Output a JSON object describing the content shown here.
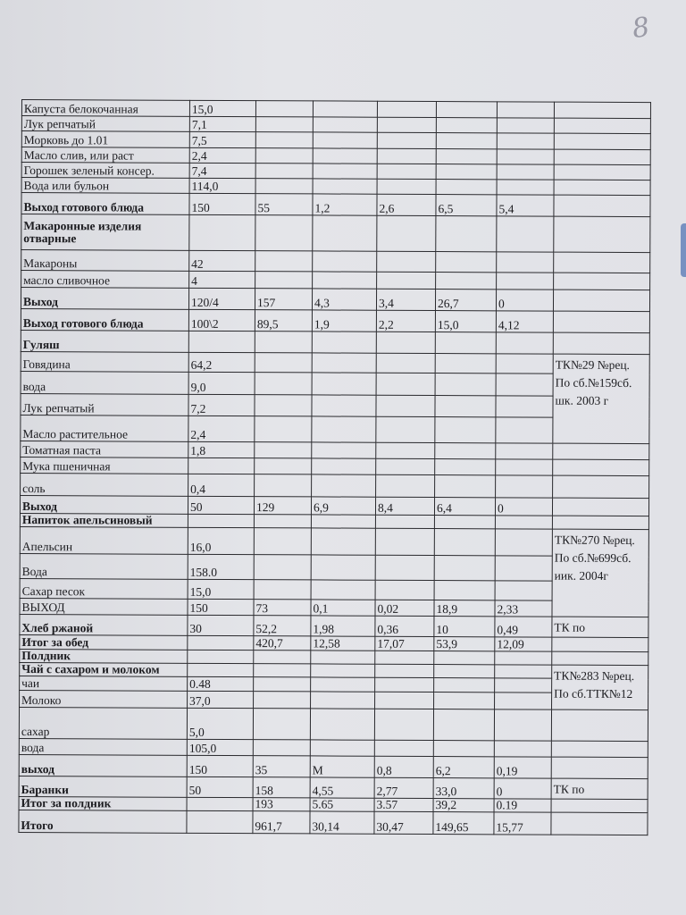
{
  "page_number": "8",
  "rows": [
    {
      "cells": [
        "Капуста белокочанная",
        "15,0",
        "",
        "",
        "",
        "",
        ""
      ],
      "bold": false
    },
    {
      "cells": [
        "Лук репчатый",
        "7,1",
        "",
        "",
        "",
        "",
        ""
      ],
      "bold": false
    },
    {
      "cells": [
        "Морковь до 1.01",
        "7,5",
        "",
        "",
        "",
        "",
        ""
      ],
      "bold": false
    },
    {
      "cells": [
        "Масло слив, или раст",
        "2,4",
        "",
        "",
        "",
        "",
        ""
      ],
      "bold": false
    },
    {
      "cells": [
        "Горошек зеленый консер.",
        "7,4",
        "",
        "",
        "",
        "",
        ""
      ],
      "bold": false
    },
    {
      "cells": [
        "Вода или бульон",
        "114,0",
        "",
        "",
        "",
        "",
        ""
      ],
      "bold": false
    },
    {
      "cells": [
        "Выход готового блюда",
        "150",
        "55",
        "1,2",
        "2,6",
        "6,5",
        "5,4"
      ],
      "bold": true
    },
    {
      "cells": [
        "Макаронные изделия отварные",
        "",
        "",
        "",
        "",
        "",
        ""
      ],
      "bold": true
    },
    {
      "cells": [
        "Макароны",
        "42",
        "",
        "",
        "",
        "",
        ""
      ],
      "bold": false
    },
    {
      "cells": [
        "масло сливочное",
        "4",
        "",
        "",
        "",
        "",
        ""
      ],
      "bold": false
    },
    {
      "cells": [
        "Выход",
        "120/4",
        "157",
        "4,3",
        "3,4",
        "26,7",
        "0"
      ],
      "bold": true
    },
    {
      "cells": [
        "Выход готового блюда",
        "100\\2",
        "89,5",
        "1,9",
        "2,2",
        "15,0",
        "4,12"
      ],
      "bold": true
    },
    {
      "cells": [
        "Гуляш",
        "",
        "",
        "",
        "",
        "",
        ""
      ],
      "bold": true
    },
    {
      "cells": [
        "Говядина",
        "64,2",
        "",
        "",
        "",
        "",
        ""
      ],
      "bold": false
    },
    {
      "cells": [
        "вода",
        "9,0",
        "",
        "",
        "",
        "",
        ""
      ],
      "bold": false
    },
    {
      "cells": [
        "Лук репчатый",
        "7,2",
        "",
        "",
        "",
        "",
        ""
      ],
      "bold": false
    },
    {
      "cells": [
        "Масло растительное",
        "2,4",
        "",
        "",
        "",
        "",
        ""
      ],
      "bold": false
    },
    {
      "cells": [
        "Томатная паста",
        "1,8",
        "",
        "",
        "",
        "",
        ""
      ],
      "bold": false
    },
    {
      "cells": [
        "Мука пшеничная",
        "",
        "",
        "",
        "",
        "",
        ""
      ],
      "bold": false
    },
    {
      "cells": [
        "соль",
        "0,4",
        "",
        "",
        "",
        "",
        ""
      ],
      "bold": false
    },
    {
      "cells": [
        "Выход",
        "50",
        "129",
        "6,9",
        "8,4",
        "6,4",
        "0"
      ],
      "bold": true
    },
    {
      "cells": [
        "Напиток апельсиновый",
        "",
        "",
        "",
        "",
        "",
        ""
      ],
      "bold": true
    },
    {
      "cells": [
        "Апельсин",
        "16,0",
        "",
        "",
        "",
        "",
        ""
      ],
      "bold": false
    },
    {
      "cells": [
        "Вода",
        "158.0",
        "",
        "",
        "",
        "",
        ""
      ],
      "bold": false
    },
    {
      "cells": [
        "Сахар песок",
        "15,0",
        "",
        "",
        "",
        "",
        ""
      ],
      "bold": false
    },
    {
      "cells": [
        "ВЫХОД",
        "150",
        "73",
        "0,1",
        "0,02",
        "18,9",
        "2,33"
      ],
      "bold": false
    },
    {
      "cells": [
        "Хлеб ржаной",
        "30",
        "52,2",
        "1,98",
        "0,36",
        "10",
        "0,49"
      ],
      "bold": true
    },
    {
      "cells": [
        "Итог за обед",
        "",
        "420,7",
        "12,58",
        "17,07",
        "53,9",
        "12,09"
      ],
      "bold": true
    },
    {
      "cells": [
        "Полдник",
        "",
        "",
        "",
        "",
        "",
        ""
      ],
      "bold": true
    },
    {
      "cells": [
        "Чай с сахаром и молоком",
        "",
        "",
        "",
        "",
        "",
        ""
      ],
      "bold": true
    },
    {
      "cells": [
        "чаи",
        "0.48",
        "",
        "",
        "",
        "",
        ""
      ],
      "bold": false
    },
    {
      "cells": [
        "Молоко",
        "37,0",
        "",
        "",
        "",
        "",
        ""
      ],
      "bold": false
    },
    {
      "cells": [
        "сахар",
        "5,0",
        "",
        "",
        "",
        "",
        ""
      ],
      "bold": false
    },
    {
      "cells": [
        "вода",
        "105,0",
        "",
        "",
        "",
        "",
        ""
      ],
      "bold": false
    },
    {
      "cells": [
        "выход",
        "150",
        "35",
        "М",
        "0,8",
        "6,2",
        "0,19"
      ],
      "bold": true
    },
    {
      "cells": [
        "Баранки",
        "50",
        "158",
        "4,55",
        "2,77",
        "33,0",
        "0"
      ],
      "bold": true
    },
    {
      "cells": [
        "Итог за полдник",
        "",
        "193",
        "5.65",
        "3.57",
        "39,2",
        "0.19"
      ],
      "bold": true
    },
    {
      "cells": [
        "Итого",
        "",
        "961,7",
        "30,14",
        "30,47",
        "149,65",
        "15,77"
      ],
      "bold": true
    }
  ],
  "notes": [
    {
      "text": "ТК№29 №рец. По сб.№159сб. шк. 2003 г",
      "start": 13,
      "span": 4
    },
    {
      "text": "ТК№270 №рец. По сб.№699сб. иик. 2004г",
      "start": 22,
      "span": 4
    },
    {
      "text": "ТК по",
      "start": 26,
      "span": 1
    },
    {
      "text": "ТК№283 №рец. По сб.ТТК№12",
      "start": 29,
      "span": 3
    },
    {
      "text": "ТК по",
      "start": 35,
      "span": 1
    }
  ]
}
